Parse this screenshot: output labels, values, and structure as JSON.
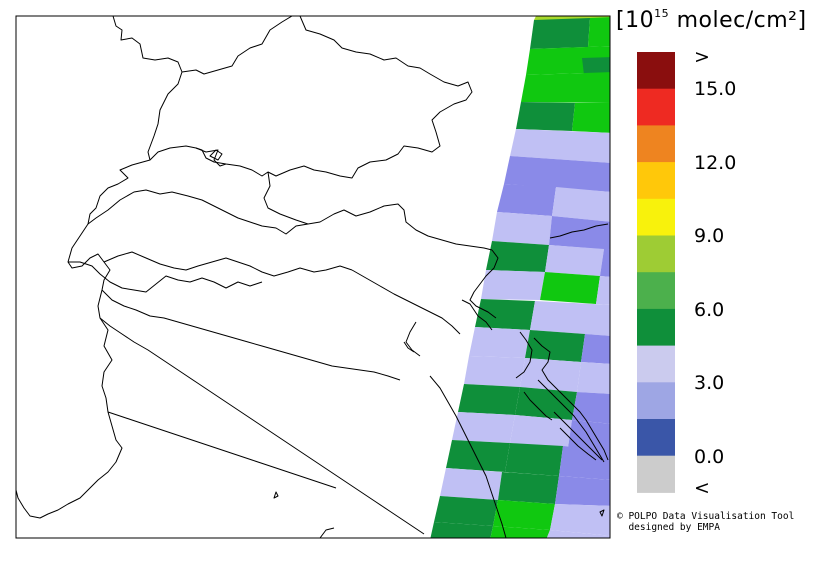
{
  "unit_label": {
    "prefix": "[10",
    "exponent": "15",
    "suffix": " molec/cm²]"
  },
  "legend": {
    "labels": [
      ">",
      "15.0",
      "12.0",
      "9.0",
      "6.0",
      "3.0",
      "0.0",
      "<"
    ],
    "colors": [
      "#8a0e0e",
      "#ee2a22",
      "#ee8420",
      "#ffc80a",
      "#f8f20c",
      "#9ecc34",
      "#4cb04c",
      "#0f8f3a",
      "#cbcbee",
      "#9ea6e4",
      "#3a56a8",
      "#cccccc"
    ]
  },
  "credit": {
    "line1": "© POLPO Data Visualisation Tool",
    "line2": "  designed by EMPA"
  },
  "pixel_colors": {
    "dark_green": "#0f8f3a",
    "green": "#10c810",
    "lime": "#a8d82c",
    "light_lavender": "#c0c0f4",
    "mid_blue": "#8a8ae8"
  }
}
